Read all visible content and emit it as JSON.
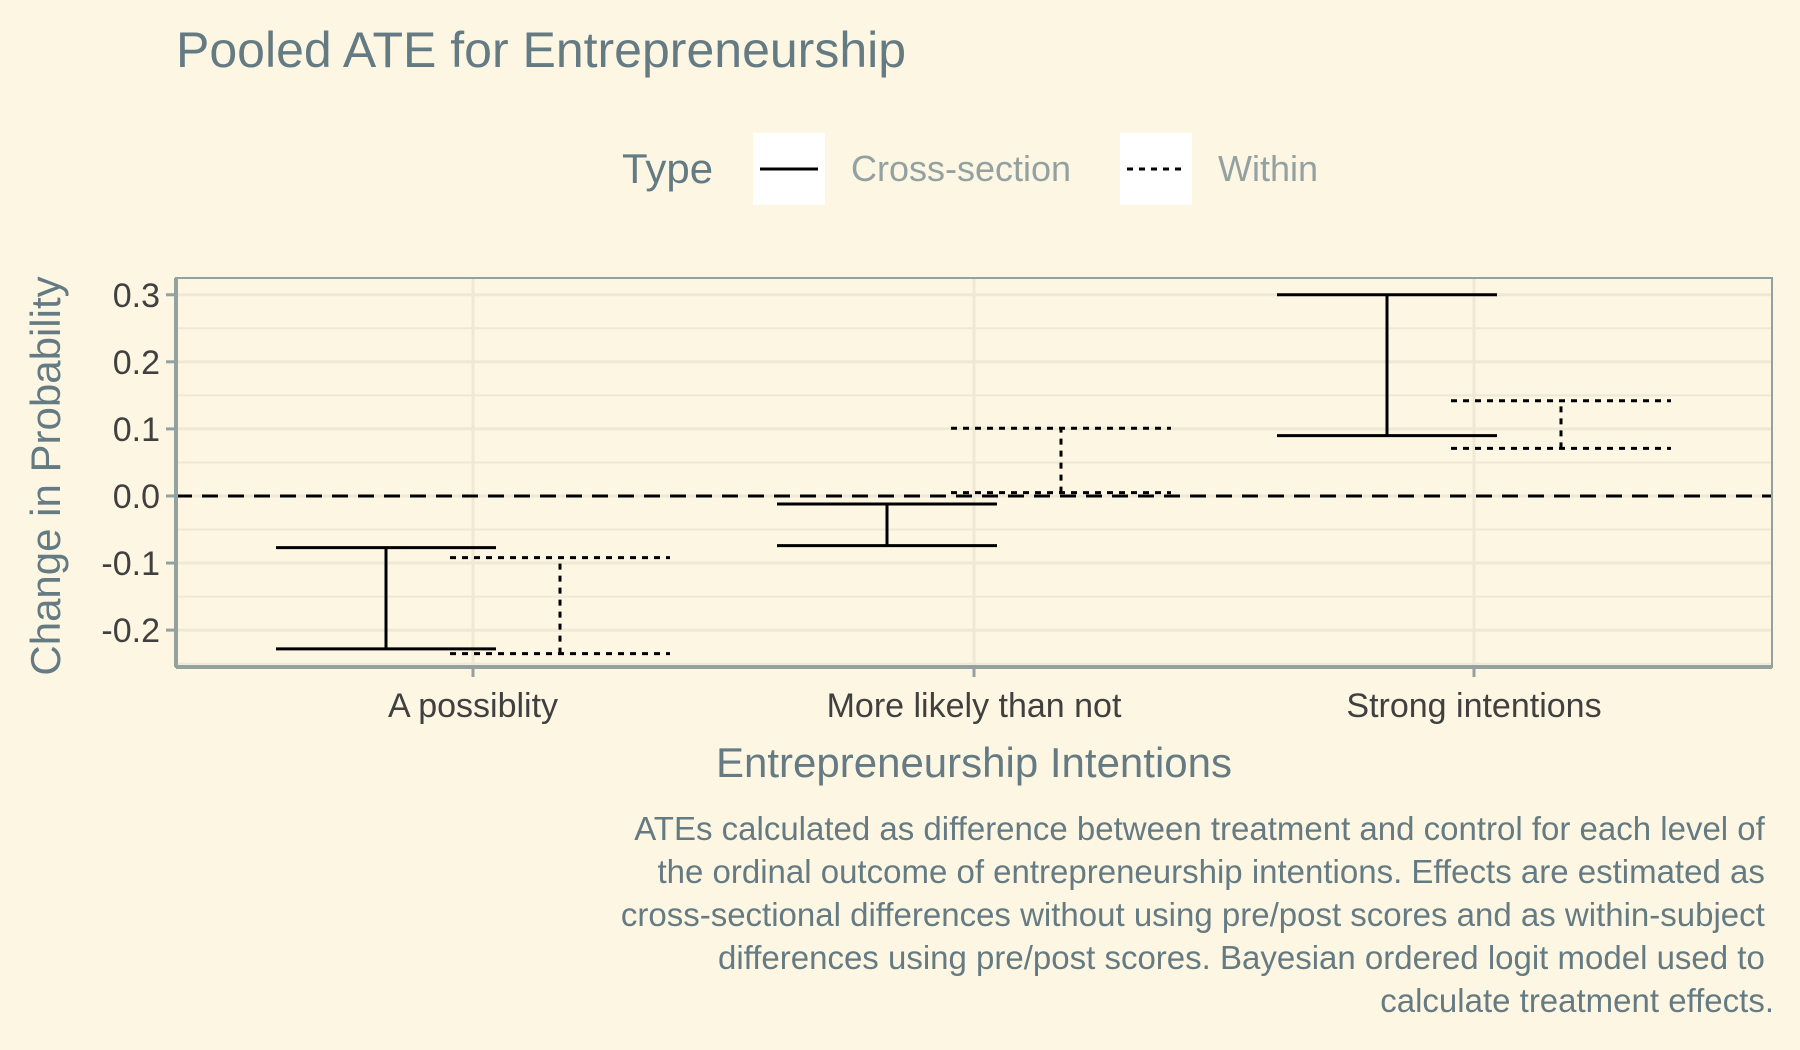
{
  "chart_data": {
    "type": "errorbar",
    "title": "Pooled ATE for Entrepreneurship",
    "xlabel": "Entrepreneurship Intentions",
    "ylabel": "Change in Probability",
    "categories": [
      "A possiblity",
      "More likely than not",
      "Strong intentions"
    ],
    "ylim": [
      -0.255,
      0.325
    ],
    "yticks": [
      0.3,
      0.2,
      0.1,
      0.0,
      -0.1,
      -0.2
    ],
    "ytick_labels": [
      "0.3",
      "0.2",
      "0.1",
      "0.0",
      "-0.1",
      "-0.2"
    ],
    "reference_line": 0,
    "legend": {
      "title": "Type",
      "position": "top",
      "entries": [
        {
          "label": "Cross-section",
          "linestyle": "solid"
        },
        {
          "label": "Within",
          "linestyle": "dotted"
        }
      ]
    },
    "series": [
      {
        "name": "Cross-section",
        "linestyle": "solid",
        "intervals": [
          [
            -0.228,
            -0.077
          ],
          [
            -0.074,
            -0.012
          ],
          [
            0.09,
            0.3
          ]
        ]
      },
      {
        "name": "Within",
        "linestyle": "dotted",
        "intervals": [
          [
            -0.235,
            -0.092
          ],
          [
            0.005,
            0.101
          ],
          [
            0.071,
            0.142
          ]
        ]
      }
    ],
    "grid": true,
    "caption": [
      "ATEs calculated as difference between treatment and control for each level of",
      "the ordinal outcome of entrepreneurship intentions. Effects are estimated as",
      "cross-sectional differences without using pre/post scores and as within-subject",
      "differences using pre/post scores. Bayesian ordered logit model used to",
      "calculate treatment effects."
    ],
    "colors": {
      "background": "#fdf6e3",
      "grid": "#eee8d5",
      "axis": "#93a1a1",
      "bars": "#000000"
    }
  }
}
